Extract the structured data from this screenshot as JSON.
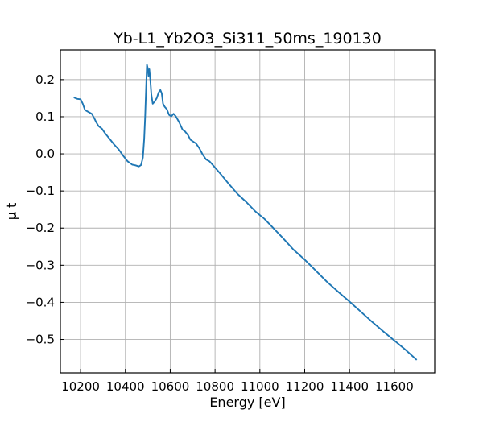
{
  "chart_data": {
    "type": "line",
    "title": "Yb-L1_Yb2O3_Si311_50ms_190130",
    "xlabel": "Energy [eV]",
    "ylabel": "μ t",
    "xlim": [
      10110,
      11780
    ],
    "ylim": [
      -0.59,
      0.28
    ],
    "x_ticks": [
      10200,
      10400,
      10600,
      10800,
      11000,
      11200,
      11400,
      11600
    ],
    "y_ticks": [
      0.2,
      0.1,
      0.0,
      -0.1,
      -0.2,
      -0.3,
      -0.4,
      -0.5
    ],
    "x_tick_labels": [
      "10200",
      "10400",
      "10600",
      "10800",
      "11000",
      "11200",
      "11400",
      "11600"
    ],
    "y_tick_labels": [
      "0.2",
      "0.1",
      "0.0",
      "−0.1",
      "−0.2",
      "−0.3",
      "−0.4",
      "−0.5"
    ],
    "grid": true,
    "line_color": "#1f77b4",
    "series": [
      {
        "x": [
          10170,
          10185,
          10200,
          10210,
          10220,
          10235,
          10250,
          10260,
          10270,
          10280,
          10295,
          10310,
          10330,
          10350,
          10370,
          10390,
          10410,
          10430,
          10445,
          10460,
          10470,
          10478,
          10484,
          10488,
          10492,
          10496,
          10500,
          10503,
          10507,
          10511,
          10516,
          10522,
          10530,
          10540,
          10548,
          10556,
          10562,
          10568,
          10575,
          10585,
          10595,
          10605,
          10615,
          10625,
          10640,
          10655,
          10665,
          10680,
          10690,
          10700,
          10715,
          10730,
          10745,
          10760,
          10775,
          10790,
          10810,
          10830,
          10860,
          10900,
          10940,
          10980,
          11000,
          11020,
          11060,
          11100,
          11150,
          11200,
          11250,
          11300,
          11350,
          11400,
          11450,
          11500,
          11550,
          11600,
          11650,
          11700
        ],
        "y": [
          0.152,
          0.148,
          0.147,
          0.135,
          0.118,
          0.113,
          0.108,
          0.097,
          0.085,
          0.075,
          0.068,
          0.055,
          0.04,
          0.025,
          0.012,
          -0.005,
          -0.02,
          -0.029,
          -0.031,
          -0.034,
          -0.03,
          -0.01,
          0.04,
          0.1,
          0.17,
          0.24,
          0.23,
          0.21,
          0.228,
          0.2,
          0.16,
          0.135,
          0.14,
          0.15,
          0.165,
          0.172,
          0.163,
          0.135,
          0.127,
          0.12,
          0.105,
          0.101,
          0.108,
          0.101,
          0.085,
          0.065,
          0.061,
          0.05,
          0.038,
          0.034,
          0.028,
          0.015,
          -0.002,
          -0.015,
          -0.02,
          -0.03,
          -0.044,
          -0.058,
          -0.08,
          -0.108,
          -0.13,
          -0.155,
          -0.165,
          -0.175,
          -0.2,
          -0.225,
          -0.258,
          -0.285,
          -0.315,
          -0.345,
          -0.372,
          -0.398,
          -0.425,
          -0.452,
          -0.478,
          -0.503,
          -0.528,
          -0.555
        ]
      }
    ]
  }
}
